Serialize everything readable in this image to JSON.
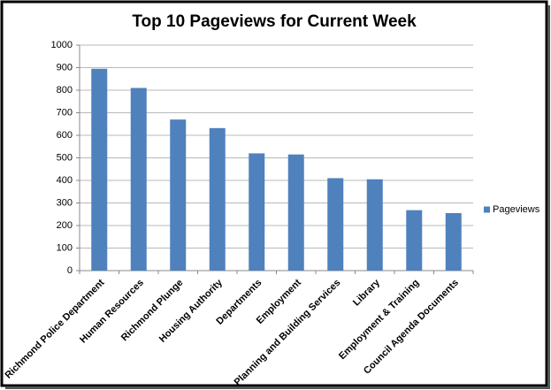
{
  "chart_data": {
    "type": "bar",
    "title": "Top 10 Pageviews for Current Week",
    "categories": [
      "Richmond Police Department",
      "Human Resources",
      "Richmond Plunge",
      "Housing Authority",
      "Departments",
      "Employment",
      "Planning and Building Services",
      "Library",
      "Employment & Training",
      "Council Agenda Documents"
    ],
    "series": [
      {
        "name": "Pageviews",
        "color": "#4f81bd",
        "values": [
          895,
          810,
          670,
          632,
          520,
          515,
          410,
          405,
          268,
          255
        ]
      }
    ],
    "ylim": [
      0,
      1000
    ],
    "yticks": [
      0,
      100,
      200,
      300,
      400,
      500,
      600,
      700,
      800,
      900,
      1000
    ],
    "grid": true,
    "legend": "right"
  }
}
